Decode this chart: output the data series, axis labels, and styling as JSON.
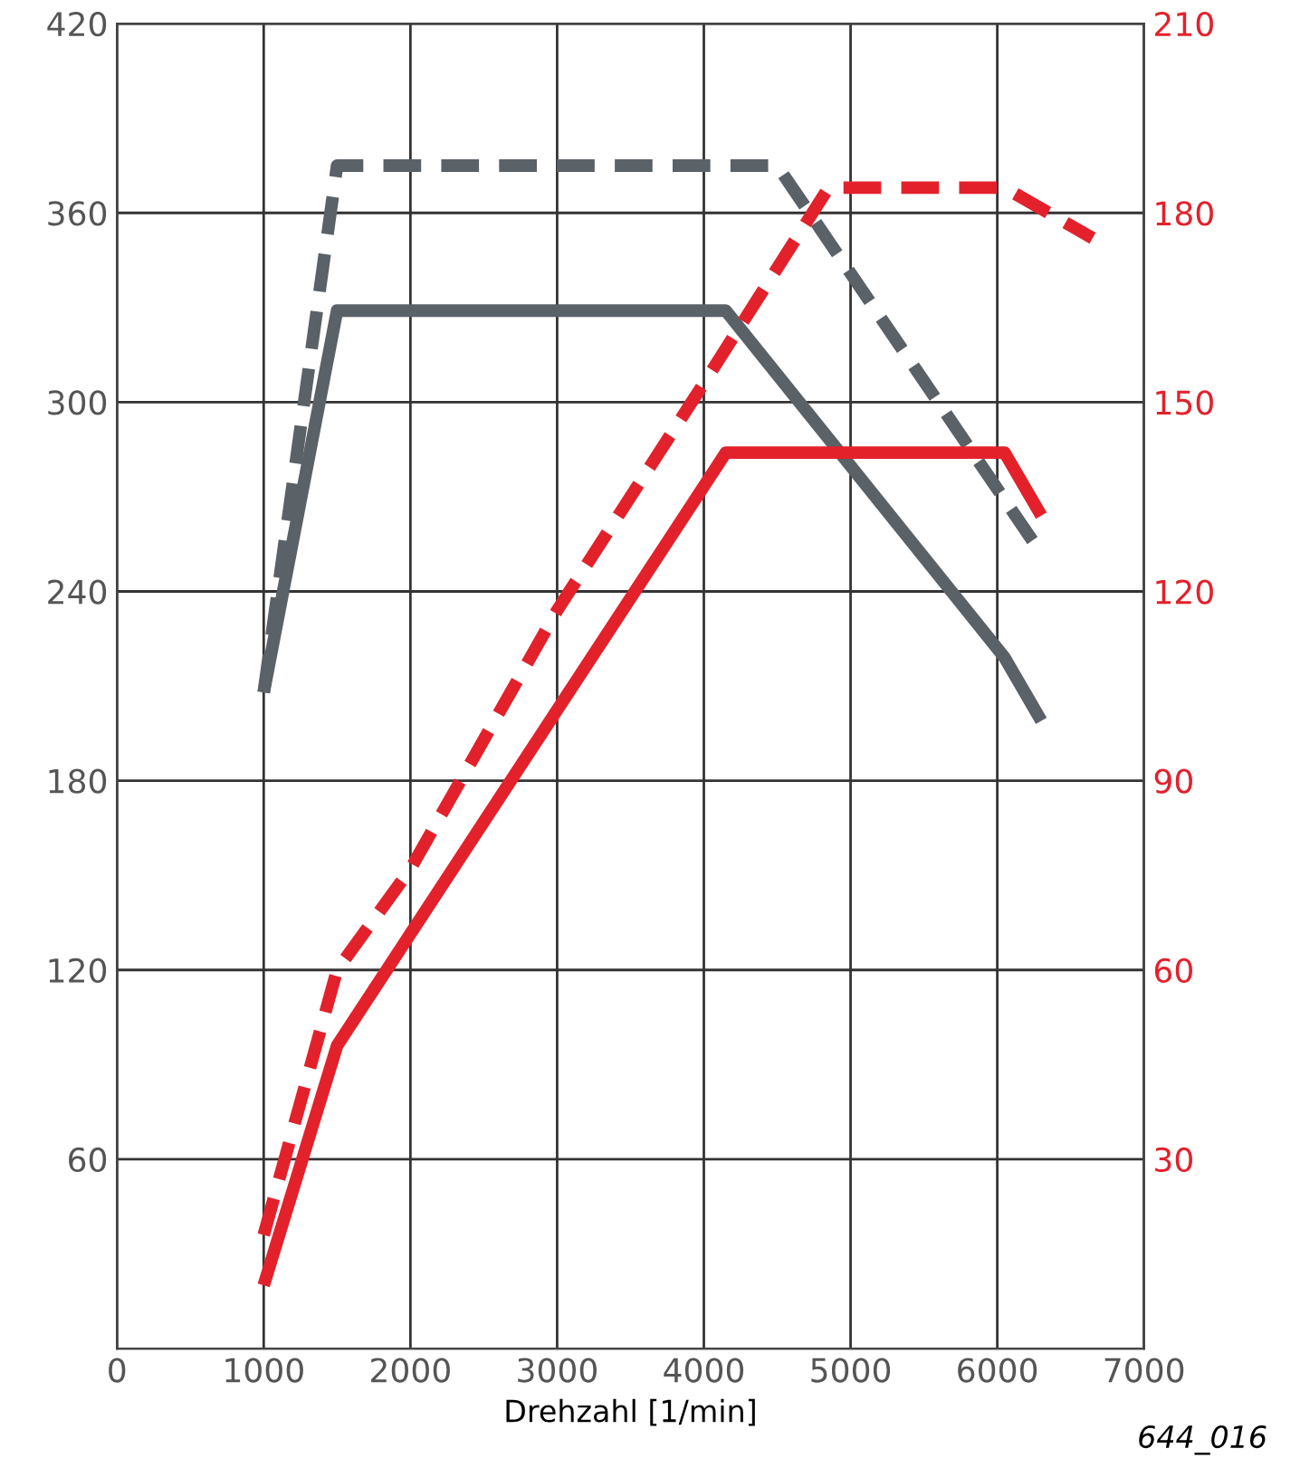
{
  "chart_data": {
    "type": "line",
    "xlabel": "Drehzahl [1/min]",
    "annotations": [
      "644_016"
    ],
    "xlim": [
      0,
      7000
    ],
    "xticks": [
      0,
      1000,
      2000,
      3000,
      4000,
      5000,
      6000,
      7000
    ],
    "ylim": [
      0,
      420
    ],
    "yticks": [
      60,
      120,
      180,
      240,
      300,
      360,
      420
    ],
    "y2lim": [
      0,
      210
    ],
    "y2ticks": [
      30,
      60,
      90,
      120,
      150,
      180,
      210
    ],
    "grid": true,
    "legend": false,
    "series": [
      {
        "color": "#5a6167",
        "line_style": "dashed",
        "x": [
          1000,
          1500,
          4500,
          6300
        ],
        "values": [
          208,
          375,
          375,
          252
        ]
      },
      {
        "color": "#5a6167",
        "line_style": "solid",
        "x": [
          1000,
          1500,
          4150,
          6050,
          6300
        ],
        "values": [
          208,
          329,
          329,
          219,
          199
        ]
      },
      {
        "color": "#e3212b",
        "line_style": "dashed",
        "axis": "y2",
        "x": [
          1000,
          1500,
          2000,
          3000,
          4000,
          4850,
          6050,
          6650
        ],
        "values": [
          18,
          60,
          76,
          117,
          153,
          184,
          184,
          176
        ]
      },
      {
        "color": "#e3212b",
        "line_style": "solid",
        "axis": "y2",
        "x": [
          1000,
          1500,
          4150,
          6050,
          6300
        ],
        "values": [
          10,
          48,
          142,
          142,
          132
        ]
      }
    ]
  }
}
